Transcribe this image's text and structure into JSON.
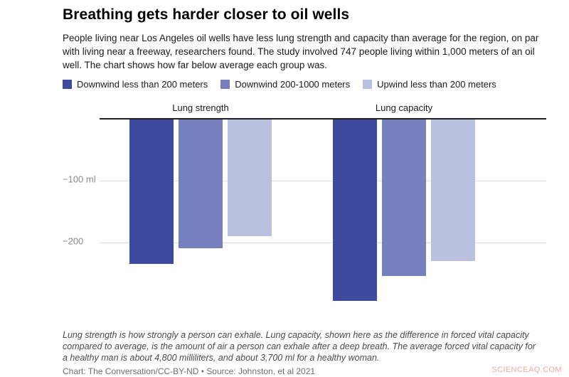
{
  "title": "Breathing gets harder closer to oil wells",
  "description": "People living near Los Angeles oil wells have less lung strength and capacity than average for the region, on par with living near a freeway, researchers found. The study involved 747 people living within 1,000 meters of an oil well. The chart shows how far below average each group was.",
  "legend": [
    {
      "label": "Downwind less than 200 meters",
      "color": "#3e4a9d"
    },
    {
      "label": "Downwind 200-1000 meters",
      "color": "#7680bf"
    },
    {
      "label": "Upwind less than 200 meters",
      "color": "#b9c0e0"
    }
  ],
  "chart_data": {
    "type": "bar",
    "orientation": "vertical-negative",
    "title": "Breathing gets harder closer to oil wells",
    "categories": [
      "Lung strength",
      "Lung capacity"
    ],
    "series": [
      {
        "name": "Downwind less than 200 meters",
        "color": "#3e4a9d",
        "values": [
          -235,
          -295
        ]
      },
      {
        "name": "Downwind 200-1000 meters",
        "color": "#7680bf",
        "values": [
          -210,
          -255
        ]
      },
      {
        "name": "Upwind less than 200 meters",
        "color": "#b9c0e0",
        "values": [
          -190,
          -230
        ]
      }
    ],
    "unit": "ml",
    "ylim": [
      0,
      -330
    ],
    "yticks": [
      {
        "value": -100,
        "label": "−100 ml"
      },
      {
        "value": -200,
        "label": "−200"
      }
    ],
    "grid": true,
    "legend_position": "top"
  },
  "footnote": "Lung strength is how strongly a person can exhale. Lung capacity, shown here as the difference in forced vital capacity compared to average, is the amount of air a person can exhale after a deep breath. The average forced vital capacity for a healthy man is about 4,800 milliliters, and about 3,700 ml for a healthy woman.",
  "credit": "Chart: The Conversation/CC-BY-ND • Source: Johnston, et al 2021",
  "watermark": "SCIENCEAQ.COM"
}
